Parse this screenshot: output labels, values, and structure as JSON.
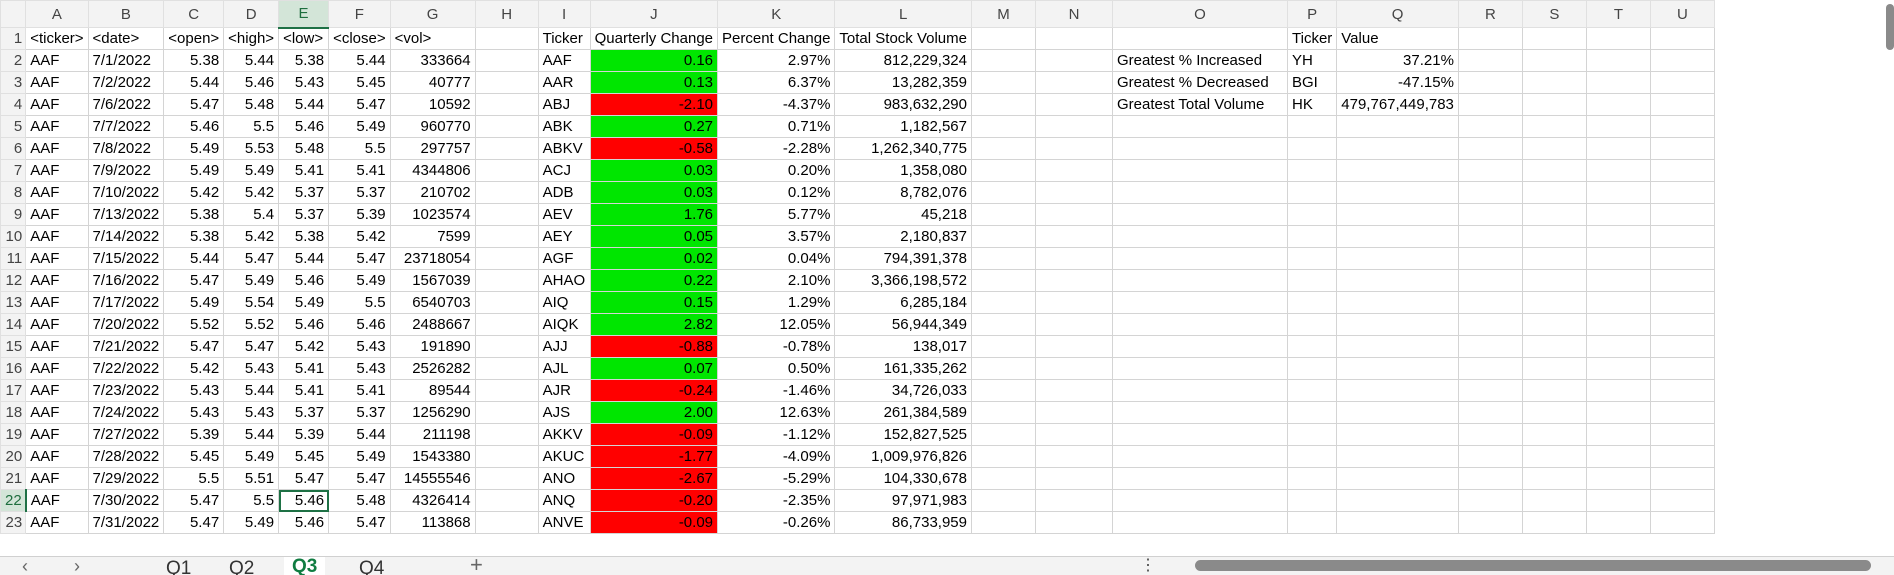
{
  "columns": [
    "A",
    "B",
    "C",
    "D",
    "E",
    "F",
    "G",
    "H",
    "I",
    "J",
    "K",
    "L",
    "M",
    "N",
    "O",
    "P",
    "Q",
    "R",
    "S",
    "T",
    "U"
  ],
  "selected_column": "E",
  "selected_row": 22,
  "header_row": [
    "<ticker>",
    "<date>",
    "<open>",
    "<high>",
    "<low>",
    "<close>",
    "<vol>",
    "",
    "Ticker",
    "Quarterly Change",
    "Percent Change",
    "Total Stock Volume",
    "",
    "",
    "",
    "Ticker",
    "Value",
    "",
    "",
    "",
    ""
  ],
  "rows": [
    [
      "AAF",
      "7/1/2022",
      "5.38",
      "5.44",
      "5.38",
      "5.44",
      "333664",
      "",
      "AAF",
      "0.16",
      "2.97%",
      "812,229,324",
      "",
      "",
      "Greatest % Increased",
      "YH",
      "37.21%",
      "",
      "",
      "",
      ""
    ],
    [
      "AAF",
      "7/2/2022",
      "5.44",
      "5.46",
      "5.43",
      "5.45",
      "40777",
      "",
      "AAR",
      "0.13",
      "6.37%",
      "13,282,359",
      "",
      "",
      "Greatest % Decreased",
      "BGI",
      "-47.15%",
      "",
      "",
      "",
      ""
    ],
    [
      "AAF",
      "7/6/2022",
      "5.47",
      "5.48",
      "5.44",
      "5.47",
      "10592",
      "",
      "ABJ",
      "-2.10",
      "-4.37%",
      "983,632,290",
      "",
      "",
      "Greatest Total Volume",
      "HK",
      "479,767,449,783",
      "",
      "",
      "",
      ""
    ],
    [
      "AAF",
      "7/7/2022",
      "5.46",
      "5.5",
      "5.46",
      "5.49",
      "960770",
      "",
      "ABK",
      "0.27",
      "0.71%",
      "1,182,567",
      "",
      "",
      "",
      "",
      "",
      "",
      "",
      "",
      ""
    ],
    [
      "AAF",
      "7/8/2022",
      "5.49",
      "5.53",
      "5.48",
      "5.5",
      "297757",
      "",
      "ABKV",
      "-0.58",
      "-2.28%",
      "1,262,340,775",
      "",
      "",
      "",
      "",
      "",
      "",
      "",
      "",
      ""
    ],
    [
      "AAF",
      "7/9/2022",
      "5.49",
      "5.49",
      "5.41",
      "5.41",
      "4344806",
      "",
      "ACJ",
      "0.03",
      "0.20%",
      "1,358,080",
      "",
      "",
      "",
      "",
      "",
      "",
      "",
      "",
      ""
    ],
    [
      "AAF",
      "7/10/2022",
      "5.42",
      "5.42",
      "5.37",
      "5.37",
      "210702",
      "",
      "ADB",
      "0.03",
      "0.12%",
      "8,782,076",
      "",
      "",
      "",
      "",
      "",
      "",
      "",
      "",
      ""
    ],
    [
      "AAF",
      "7/13/2022",
      "5.38",
      "5.4",
      "5.37",
      "5.39",
      "1023574",
      "",
      "AEV",
      "1.76",
      "5.77%",
      "45,218",
      "",
      "",
      "",
      "",
      "",
      "",
      "",
      "",
      ""
    ],
    [
      "AAF",
      "7/14/2022",
      "5.38",
      "5.42",
      "5.38",
      "5.42",
      "7599",
      "",
      "AEY",
      "0.05",
      "3.57%",
      "2,180,837",
      "",
      "",
      "",
      "",
      "",
      "",
      "",
      "",
      ""
    ],
    [
      "AAF",
      "7/15/2022",
      "5.44",
      "5.47",
      "5.44",
      "5.47",
      "23718054",
      "",
      "AGF",
      "0.02",
      "0.04%",
      "794,391,378",
      "",
      "",
      "",
      "",
      "",
      "",
      "",
      "",
      ""
    ],
    [
      "AAF",
      "7/16/2022",
      "5.47",
      "5.49",
      "5.46",
      "5.49",
      "1567039",
      "",
      "AHAO",
      "0.22",
      "2.10%",
      "3,366,198,572",
      "",
      "",
      "",
      "",
      "",
      "",
      "",
      "",
      ""
    ],
    [
      "AAF",
      "7/17/2022",
      "5.49",
      "5.54",
      "5.49",
      "5.5",
      "6540703",
      "",
      "AIQ",
      "0.15",
      "1.29%",
      "6,285,184",
      "",
      "",
      "",
      "",
      "",
      "",
      "",
      "",
      ""
    ],
    [
      "AAF",
      "7/20/2022",
      "5.52",
      "5.52",
      "5.46",
      "5.46",
      "2488667",
      "",
      "AIQK",
      "2.82",
      "12.05%",
      "56,944,349",
      "",
      "",
      "",
      "",
      "",
      "",
      "",
      "",
      ""
    ],
    [
      "AAF",
      "7/21/2022",
      "5.47",
      "5.47",
      "5.42",
      "5.43",
      "191890",
      "",
      "AJJ",
      "-0.88",
      "-0.78%",
      "138,017",
      "",
      "",
      "",
      "",
      "",
      "",
      "",
      "",
      ""
    ],
    [
      "AAF",
      "7/22/2022",
      "5.42",
      "5.43",
      "5.41",
      "5.43",
      "2526282",
      "",
      "AJL",
      "0.07",
      "0.50%",
      "161,335,262",
      "",
      "",
      "",
      "",
      "",
      "",
      "",
      "",
      ""
    ],
    [
      "AAF",
      "7/23/2022",
      "5.43",
      "5.44",
      "5.41",
      "5.41",
      "89544",
      "",
      "AJR",
      "-0.24",
      "-1.46%",
      "34,726,033",
      "",
      "",
      "",
      "",
      "",
      "",
      "",
      "",
      ""
    ],
    [
      "AAF",
      "7/24/2022",
      "5.43",
      "5.43",
      "5.37",
      "5.37",
      "1256290",
      "",
      "AJS",
      "2.00",
      "12.63%",
      "261,384,589",
      "",
      "",
      "",
      "",
      "",
      "",
      "",
      "",
      ""
    ],
    [
      "AAF",
      "7/27/2022",
      "5.39",
      "5.44",
      "5.39",
      "5.44",
      "211198",
      "",
      "AKKV",
      "-0.09",
      "-1.12%",
      "152,827,525",
      "",
      "",
      "",
      "",
      "",
      "",
      "",
      "",
      ""
    ],
    [
      "AAF",
      "7/28/2022",
      "5.45",
      "5.49",
      "5.45",
      "5.49",
      "1543380",
      "",
      "AKUC",
      "-1.77",
      "-4.09%",
      "1,009,976,826",
      "",
      "",
      "",
      "",
      "",
      "",
      "",
      "",
      ""
    ],
    [
      "AAF",
      "7/29/2022",
      "5.5",
      "5.51",
      "5.47",
      "5.47",
      "14555546",
      "",
      "ANO",
      "-2.67",
      "-5.29%",
      "104,330,678",
      "",
      "",
      "",
      "",
      "",
      "",
      "",
      "",
      ""
    ],
    [
      "AAF",
      "7/30/2022",
      "5.47",
      "5.5",
      "5.46",
      "5.48",
      "4326414",
      "",
      "ANQ",
      "-0.20",
      "-2.35%",
      "97,971,983",
      "",
      "",
      "",
      "",
      "",
      "",
      "",
      "",
      ""
    ],
    [
      "AAF",
      "7/31/2022",
      "5.47",
      "5.49",
      "5.46",
      "5.47",
      "113868",
      "",
      "ANVE",
      "-0.09",
      "-0.26%",
      "86,733,959",
      "",
      "",
      "",
      "",
      "",
      "",
      "",
      "",
      ""
    ]
  ],
  "colors": {
    "positive": "#00e600",
    "negative": "#ff0000",
    "accent": "#107c41"
  },
  "sheet_tabs": [
    {
      "label": "Q1",
      "active": false
    },
    {
      "label": "Q2",
      "active": false
    },
    {
      "label": "Q3",
      "active": true
    },
    {
      "label": "Q4",
      "active": false
    }
  ],
  "icons": {
    "prev_sheet": "chevron-left-icon",
    "next_sheet": "chevron-right-icon",
    "add_sheet": "plus-icon",
    "more": "vertical-dots-icon"
  },
  "glyphs": {
    "prev": "‹",
    "next": "›",
    "add": "+",
    "more": "⋮"
  }
}
